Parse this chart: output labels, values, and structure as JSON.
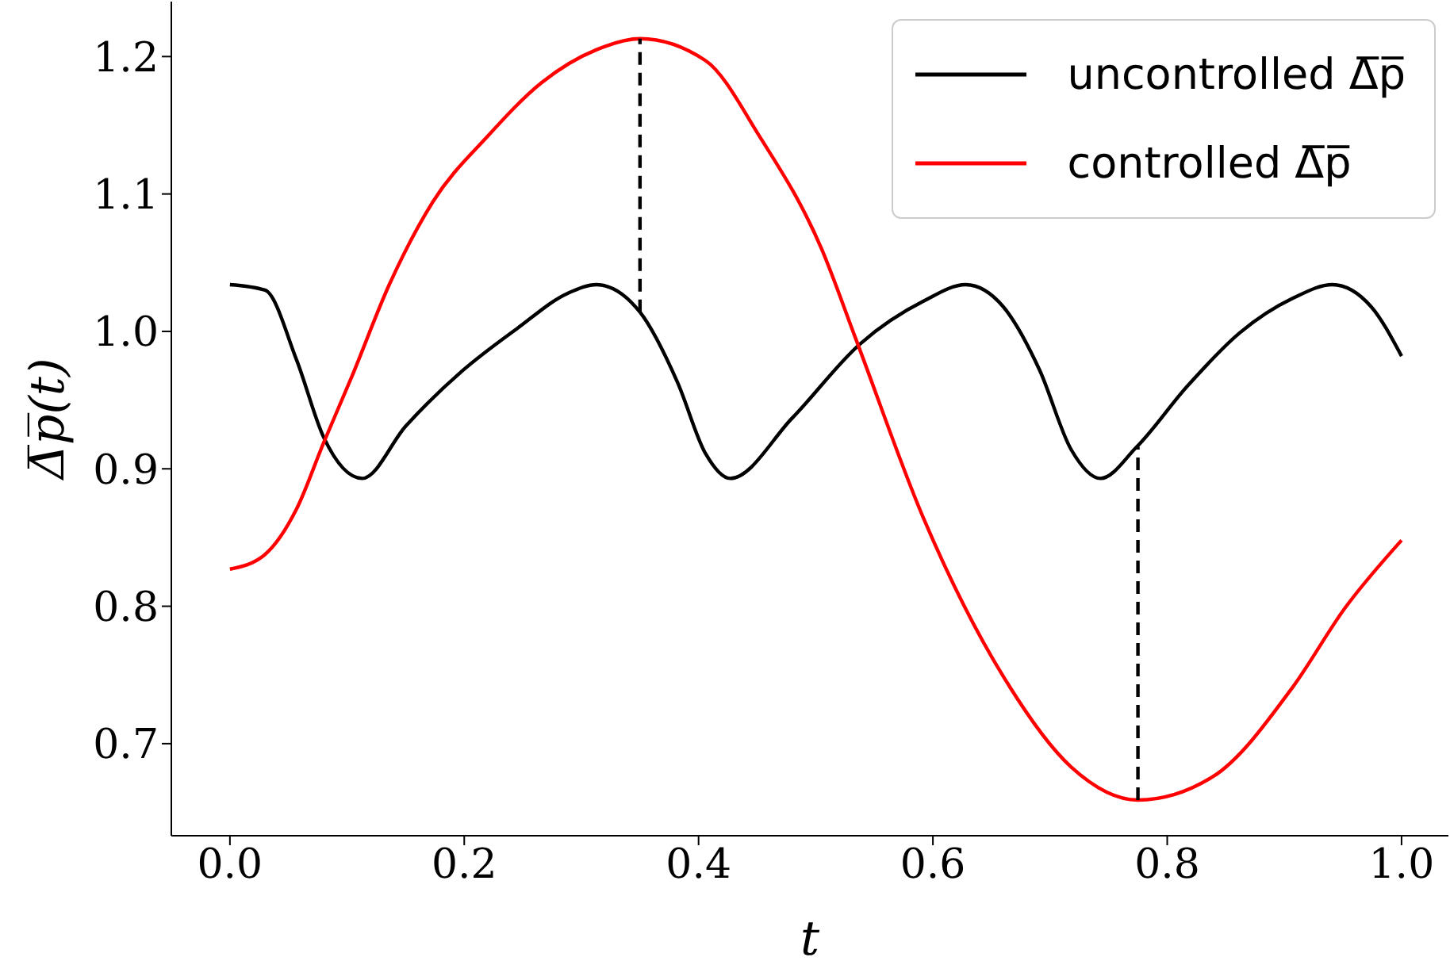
{
  "chart_data": {
    "type": "line",
    "xlabel": "t",
    "ylabel": "Δ̅p̅(t)",
    "xlim": [
      -0.05,
      1.04
    ],
    "ylim": [
      0.633,
      1.24
    ],
    "xticks": [
      {
        "value": 0,
        "label": "0.0"
      },
      0.2,
      0.4,
      0.6,
      0.8,
      {
        "value": 1,
        "label": "1.0"
      }
    ],
    "yticks": [
      0.7,
      0.8,
      0.9,
      {
        "value": 1,
        "label": "1.0"
      },
      1.1,
      1.2
    ],
    "legend": "top right",
    "series": [
      {
        "name": "uncontrolled Δ̅p̅",
        "color": "#000000",
        "x": [
          0,
          0.03,
          0.057,
          0.08,
          0.113,
          0.15,
          0.198,
          0.245,
          0.289,
          0.313,
          0.35,
          0.382,
          0.406,
          0.427,
          0.48,
          0.538,
          0.592,
          0.628,
          0.66,
          0.691,
          0.718,
          0.743,
          0.774,
          0.817,
          0.862,
          0.907,
          0.941,
          0.974,
          1.0
        ],
        "values": [
          1.034,
          1.03,
          0.979,
          0.923,
          0.893,
          0.931,
          0.971,
          1.002,
          1.028,
          1.034,
          1.014,
          0.963,
          0.911,
          0.893,
          0.937,
          0.991,
          1.022,
          1.034,
          1.018,
          0.972,
          0.914,
          0.893,
          0.916,
          0.96,
          0.999,
          1.024,
          1.034,
          1.018,
          0.982
        ]
      },
      {
        "name": "controlled Δ̅p̅",
        "color": "#ff0000",
        "x": [
          0,
          0.029,
          0.057,
          0.08,
          0.104,
          0.136,
          0.173,
          0.22,
          0.266,
          0.313,
          0.35,
          0.406,
          0.452,
          0.505,
          0.534,
          0.592,
          0.66,
          0.718,
          0.775,
          0.839,
          0.907,
          0.952,
          1.0
        ],
        "values": [
          0.827,
          0.837,
          0.871,
          0.919,
          0.967,
          1.034,
          1.094,
          1.142,
          1.181,
          1.205,
          1.213,
          1.197,
          1.142,
          1.06,
          0.995,
          0.864,
          0.749,
          0.683,
          0.659,
          0.676,
          0.741,
          0.799,
          0.848
        ]
      },
      {
        "type": "line",
        "color": "#000000",
        "line_style": "dashed",
        "x": [
          0.35,
          0.35
        ],
        "values": [
          1.014,
          1.213
        ]
      },
      {
        "type": "line",
        "color": "#000000",
        "line_style": "dashed",
        "x": [
          0.775,
          0.775
        ],
        "values": [
          0.659,
          0.916
        ]
      }
    ]
  }
}
